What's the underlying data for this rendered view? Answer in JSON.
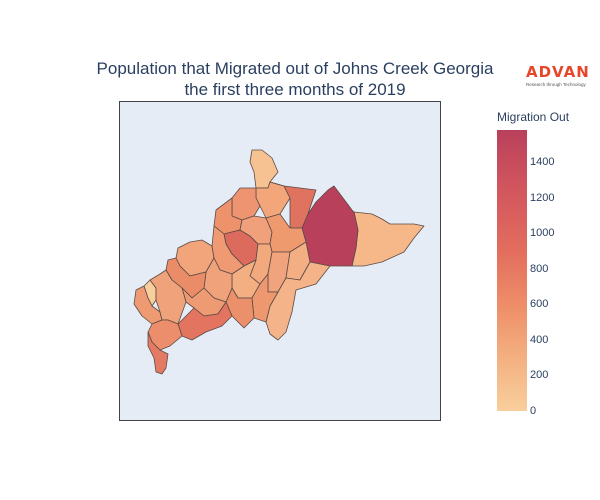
{
  "title_line1": "Population that Migrated out of Johns Creek Georgia",
  "title_line2": "the first three months of 2019",
  "logo": {
    "name": "ADVAN",
    "tagline": "Research through Technology"
  },
  "colorbar": {
    "title": "Migration Out",
    "min": 0,
    "max": 1580,
    "ticks": [
      "0",
      "200",
      "400",
      "600",
      "800",
      "1000",
      "1200",
      "1400"
    ],
    "colors": {
      "low": "#f8cf9c",
      "mid": "#ee8d68",
      "high": "#b9405b"
    }
  },
  "colors": {
    "map_background": "#e5ecf6",
    "region_outline": "#5a4a46",
    "title_text": "#2a3f5f",
    "logo_red": "#e8462a"
  }
}
